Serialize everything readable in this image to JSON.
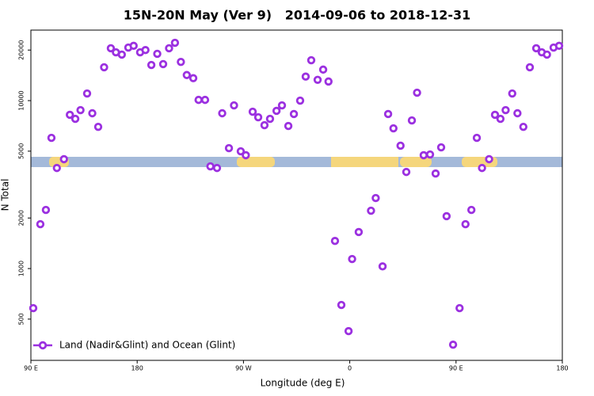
{
  "chart_data": {
    "type": "scatter",
    "title": "15N-20N May (Ver 9)   2014-09-06 to 2018-12-31",
    "x_label": "Longitude (deg E)",
    "y_label": "N Total",
    "log_y": true,
    "xlim": [
      90,
      540
    ],
    "ylim": [
      284,
      26300
    ],
    "xticks": [
      {
        "value": 90,
        "label": "90 E"
      },
      {
        "value": 180,
        "label": "180"
      },
      {
        "value": 270,
        "label": "90 W"
      },
      {
        "value": 360,
        "label": "0"
      },
      {
        "value": 450,
        "label": "90 E"
      },
      {
        "value": 540,
        "label": "180"
      }
    ],
    "yticks": [
      500,
      1000,
      2000,
      5000,
      10000,
      20000
    ],
    "legend_position": "lower left",
    "series": [
      {
        "name": "Land (Nadir&Glint) and Ocean (Glint)",
        "color": "#9b30e0",
        "x": [
          92,
          98,
          102.7,
          107.4,
          112,
          118,
          123,
          127.6,
          132,
          137.6,
          142,
          147,
          152,
          157.7,
          162,
          167,
          172.5,
          177,
          182.5,
          187,
          192,
          197,
          202,
          207,
          212,
          217,
          222,
          227.5,
          232,
          237.5,
          242,
          247.6,
          252,
          257.7,
          262,
          267.7,
          272,
          277.8,
          282.5,
          287.8,
          292.5,
          298,
          302.6,
          308,
          312.7,
          318,
          322.7,
          327.4,
          332.8,
          337.5,
          342,
          347.5,
          352.9,
          359,
          362,
          367.6,
          378,
          382,
          387.8,
          392.5,
          397,
          403,
          407.9,
          412.6,
          417,
          422.6,
          428,
          432.7,
          437.4,
          442,
          447.5,
          453,
          458,
          463,
          467.6,
          472,
          478,
          483,
          487.6,
          492,
          497.6,
          502,
          507,
          512.5,
          517.9,
          522.6,
          527,
          532.6,
          537.3
        ],
        "values": [
          581,
          1837,
          2234,
          6000,
          3970,
          4480,
          8230,
          7790,
          8780,
          11030,
          8410,
          6980,
          15800,
          20500,
          19400,
          18800,
          20700,
          21200,
          19400,
          20000,
          16300,
          19000,
          16500,
          20500,
          22100,
          17000,
          14200,
          13600,
          10100,
          10100,
          4060,
          3970,
          8410,
          5210,
          9370,
          4990,
          4730,
          8590,
          7960,
          7140,
          7790,
          8690,
          9370,
          7060,
          8320,
          10000,
          13900,
          17400,
          13300,
          15300,
          13000,
          1460,
          607,
          424,
          1140,
          1650,
          2210,
          2630,
          1030,
          8320,
          6840,
          5390,
          3760,
          7620,
          11150,
          4730,
          4780,
          3680,
          5270,
          2050,
          352,
          581,
          1837,
          2234,
          6000,
          3970,
          4480,
          8230,
          7790,
          8780,
          11030,
          8410,
          6980,
          15800,
          20500,
          19400,
          18800,
          20700,
          21200
        ]
      }
    ]
  }
}
